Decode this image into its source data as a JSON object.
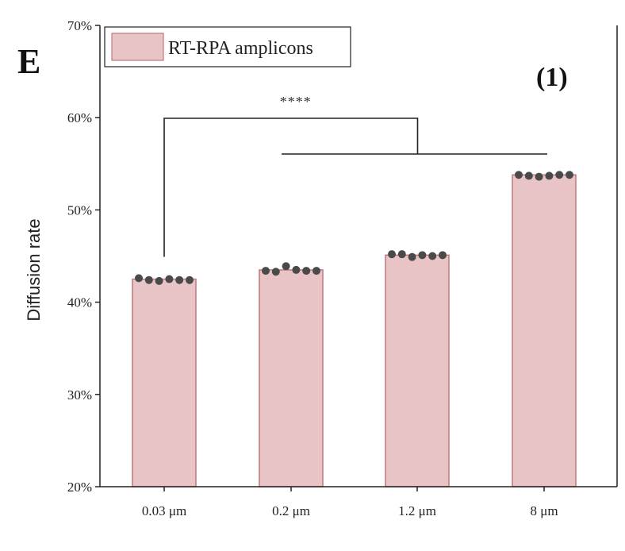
{
  "panel_label": "E",
  "subpanel_label": "(1)",
  "legend": {
    "label": "RT-RPA amplicons",
    "color": "#e8c4c6"
  },
  "significance": "****",
  "colors": {
    "bar_fill": "#e8c4c6",
    "bar_edge": "#c0787c",
    "point": "#4a4a4a",
    "axis": "#222222"
  },
  "chart_data": {
    "type": "bar",
    "categories": [
      "0.03 μm",
      "0.2 μm",
      "1.2 μm",
      "8 μm"
    ],
    "series": [
      {
        "name": "RT-RPA amplicons",
        "values": [
          42.5,
          43.5,
          45.1,
          53.8
        ]
      }
    ],
    "points": [
      [
        42.6,
        42.4,
        42.3,
        42.5,
        42.4,
        42.4
      ],
      [
        43.4,
        43.3,
        43.9,
        43.5,
        43.4,
        43.4
      ],
      [
        45.2,
        45.2,
        44.9,
        45.1,
        45.0,
        45.1
      ],
      [
        53.8,
        53.7,
        53.6,
        53.7,
        53.8,
        53.8
      ]
    ],
    "xlabel": "",
    "ylabel": "Diffusion rate",
    "ylim": [
      20,
      70
    ],
    "yticks": [
      20,
      30,
      40,
      50,
      60,
      70
    ],
    "ytick_labels": [
      "20%",
      "30%",
      "40%",
      "50%",
      "60%",
      "70%"
    ],
    "grid": false,
    "legend_position": "top-left"
  }
}
